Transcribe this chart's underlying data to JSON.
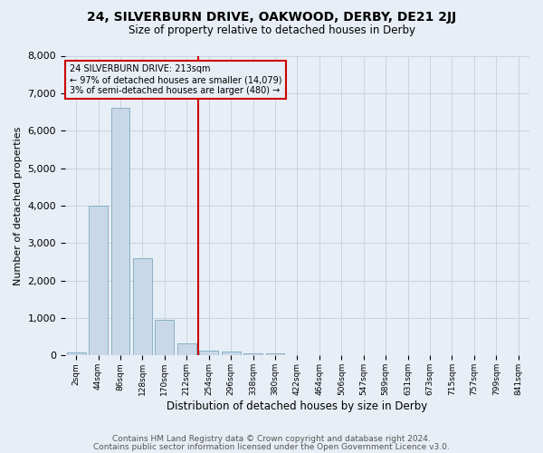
{
  "title1": "24, SILVERBURN DRIVE, OAKWOOD, DERBY, DE21 2JJ",
  "title2": "Size of property relative to detached houses in Derby",
  "xlabel": "Distribution of detached houses by size in Derby",
  "ylabel": "Number of detached properties",
  "footnote1": "Contains HM Land Registry data © Crown copyright and database right 2024.",
  "footnote2": "Contains public sector information licensed under the Open Government Licence v3.0.",
  "annotation_line1": "24 SILVERBURN DRIVE: 213sqm",
  "annotation_line2": "← 97% of detached houses are smaller (14,079)",
  "annotation_line3": "3% of semi-detached houses are larger (480) →",
  "bar_labels": [
    "2sqm",
    "44sqm",
    "86sqm",
    "128sqm",
    "170sqm",
    "212sqm",
    "254sqm",
    "296sqm",
    "338sqm",
    "380sqm",
    "422sqm",
    "464sqm",
    "506sqm",
    "547sqm",
    "589sqm",
    "631sqm",
    "673sqm",
    "715sqm",
    "757sqm",
    "799sqm",
    "841sqm"
  ],
  "bar_values": [
    75,
    4000,
    6600,
    2600,
    950,
    330,
    140,
    100,
    65,
    55,
    0,
    0,
    0,
    0,
    0,
    0,
    0,
    0,
    0,
    0,
    0
  ],
  "bar_color": "#c8d8e8",
  "bar_edge_color": "#7aaabf",
  "vline_color": "#cc0000",
  "grid_color": "#c8d4e0",
  "background_color": "#e8eef5",
  "annotation_box_color": "#cc0000",
  "ylim": [
    0,
    8000
  ],
  "vline_bar_index": 5,
  "title1_fontsize": 10,
  "title2_fontsize": 8.5,
  "footnote_fontsize": 6.5,
  "ylabel_fontsize": 8,
  "xlabel_fontsize": 8.5
}
